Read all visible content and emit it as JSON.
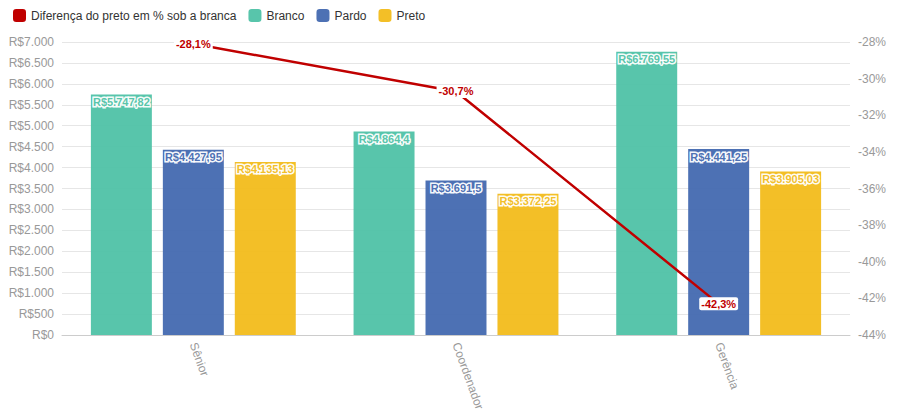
{
  "chart_data": {
    "type": "bar",
    "categories": [
      "Sênior",
      "Coordenador",
      "Gerência"
    ],
    "series": [
      {
        "name": "Diferença do preto em % sob a branca",
        "type": "line",
        "axis": "y2",
        "color": "#c00000",
        "values": [
          -28.1,
          -30.7,
          -42.3
        ],
        "value_labels": [
          "-28,1%",
          "-30,7%",
          "-42,3%"
        ]
      },
      {
        "name": "Branco",
        "type": "bar",
        "color": "#4fc2a6",
        "values": [
          5747.82,
          4864.4,
          6769.55
        ],
        "value_labels": [
          "R$5.747,82",
          "R$4.864,4",
          "R$6.769,55"
        ]
      },
      {
        "name": "Pardo",
        "type": "bar",
        "color": "#4369b0",
        "values": [
          4427.95,
          3691.5,
          4441.25
        ],
        "value_labels": [
          "R$4.427,95",
          "R$3.691,5",
          "R$4.441,25"
        ]
      },
      {
        "name": "Preto",
        "type": "bar",
        "color": "#f2bc1b",
        "values": [
          4135.13,
          3372.25,
          3905.03
        ],
        "value_labels": [
          "R$4.135,13",
          "R$3.372,25",
          "R$3.905,03"
        ]
      }
    ],
    "ylim": [
      0,
      7000
    ],
    "yticks": [
      {
        "value": 0,
        "label": "R$0"
      },
      {
        "value": 500,
        "label": "R$500"
      },
      {
        "value": 1000,
        "label": "R$1.000"
      },
      {
        "value": 1500,
        "label": "R$1.500"
      },
      {
        "value": 2000,
        "label": "R$2.000"
      },
      {
        "value": 2500,
        "label": "R$2.500"
      },
      {
        "value": 3000,
        "label": "R$3.000"
      },
      {
        "value": 3500,
        "label": "R$3.500"
      },
      {
        "value": 4000,
        "label": "R$4.000"
      },
      {
        "value": 4500,
        "label": "R$4.500"
      },
      {
        "value": 5000,
        "label": "R$5.000"
      },
      {
        "value": 5500,
        "label": "R$5.500"
      },
      {
        "value": 6000,
        "label": "R$6.000"
      },
      {
        "value": 6500,
        "label": "R$6.500"
      },
      {
        "value": 7000,
        "label": "R$7.000"
      }
    ],
    "y2lim": [
      -44,
      -28
    ],
    "y2ticks": [
      {
        "value": -44,
        "label": "-44%"
      },
      {
        "value": -42,
        "label": "-42%"
      },
      {
        "value": -40,
        "label": "-40%"
      },
      {
        "value": -38,
        "label": "-38%"
      },
      {
        "value": -36,
        "label": "-36%"
      },
      {
        "value": -34,
        "label": "-34%"
      },
      {
        "value": -32,
        "label": "-32%"
      },
      {
        "value": -30,
        "label": "-30%"
      },
      {
        "value": -28,
        "label": "-28%"
      }
    ],
    "grid": true,
    "legend": "top-left",
    "data_labels": true
  }
}
